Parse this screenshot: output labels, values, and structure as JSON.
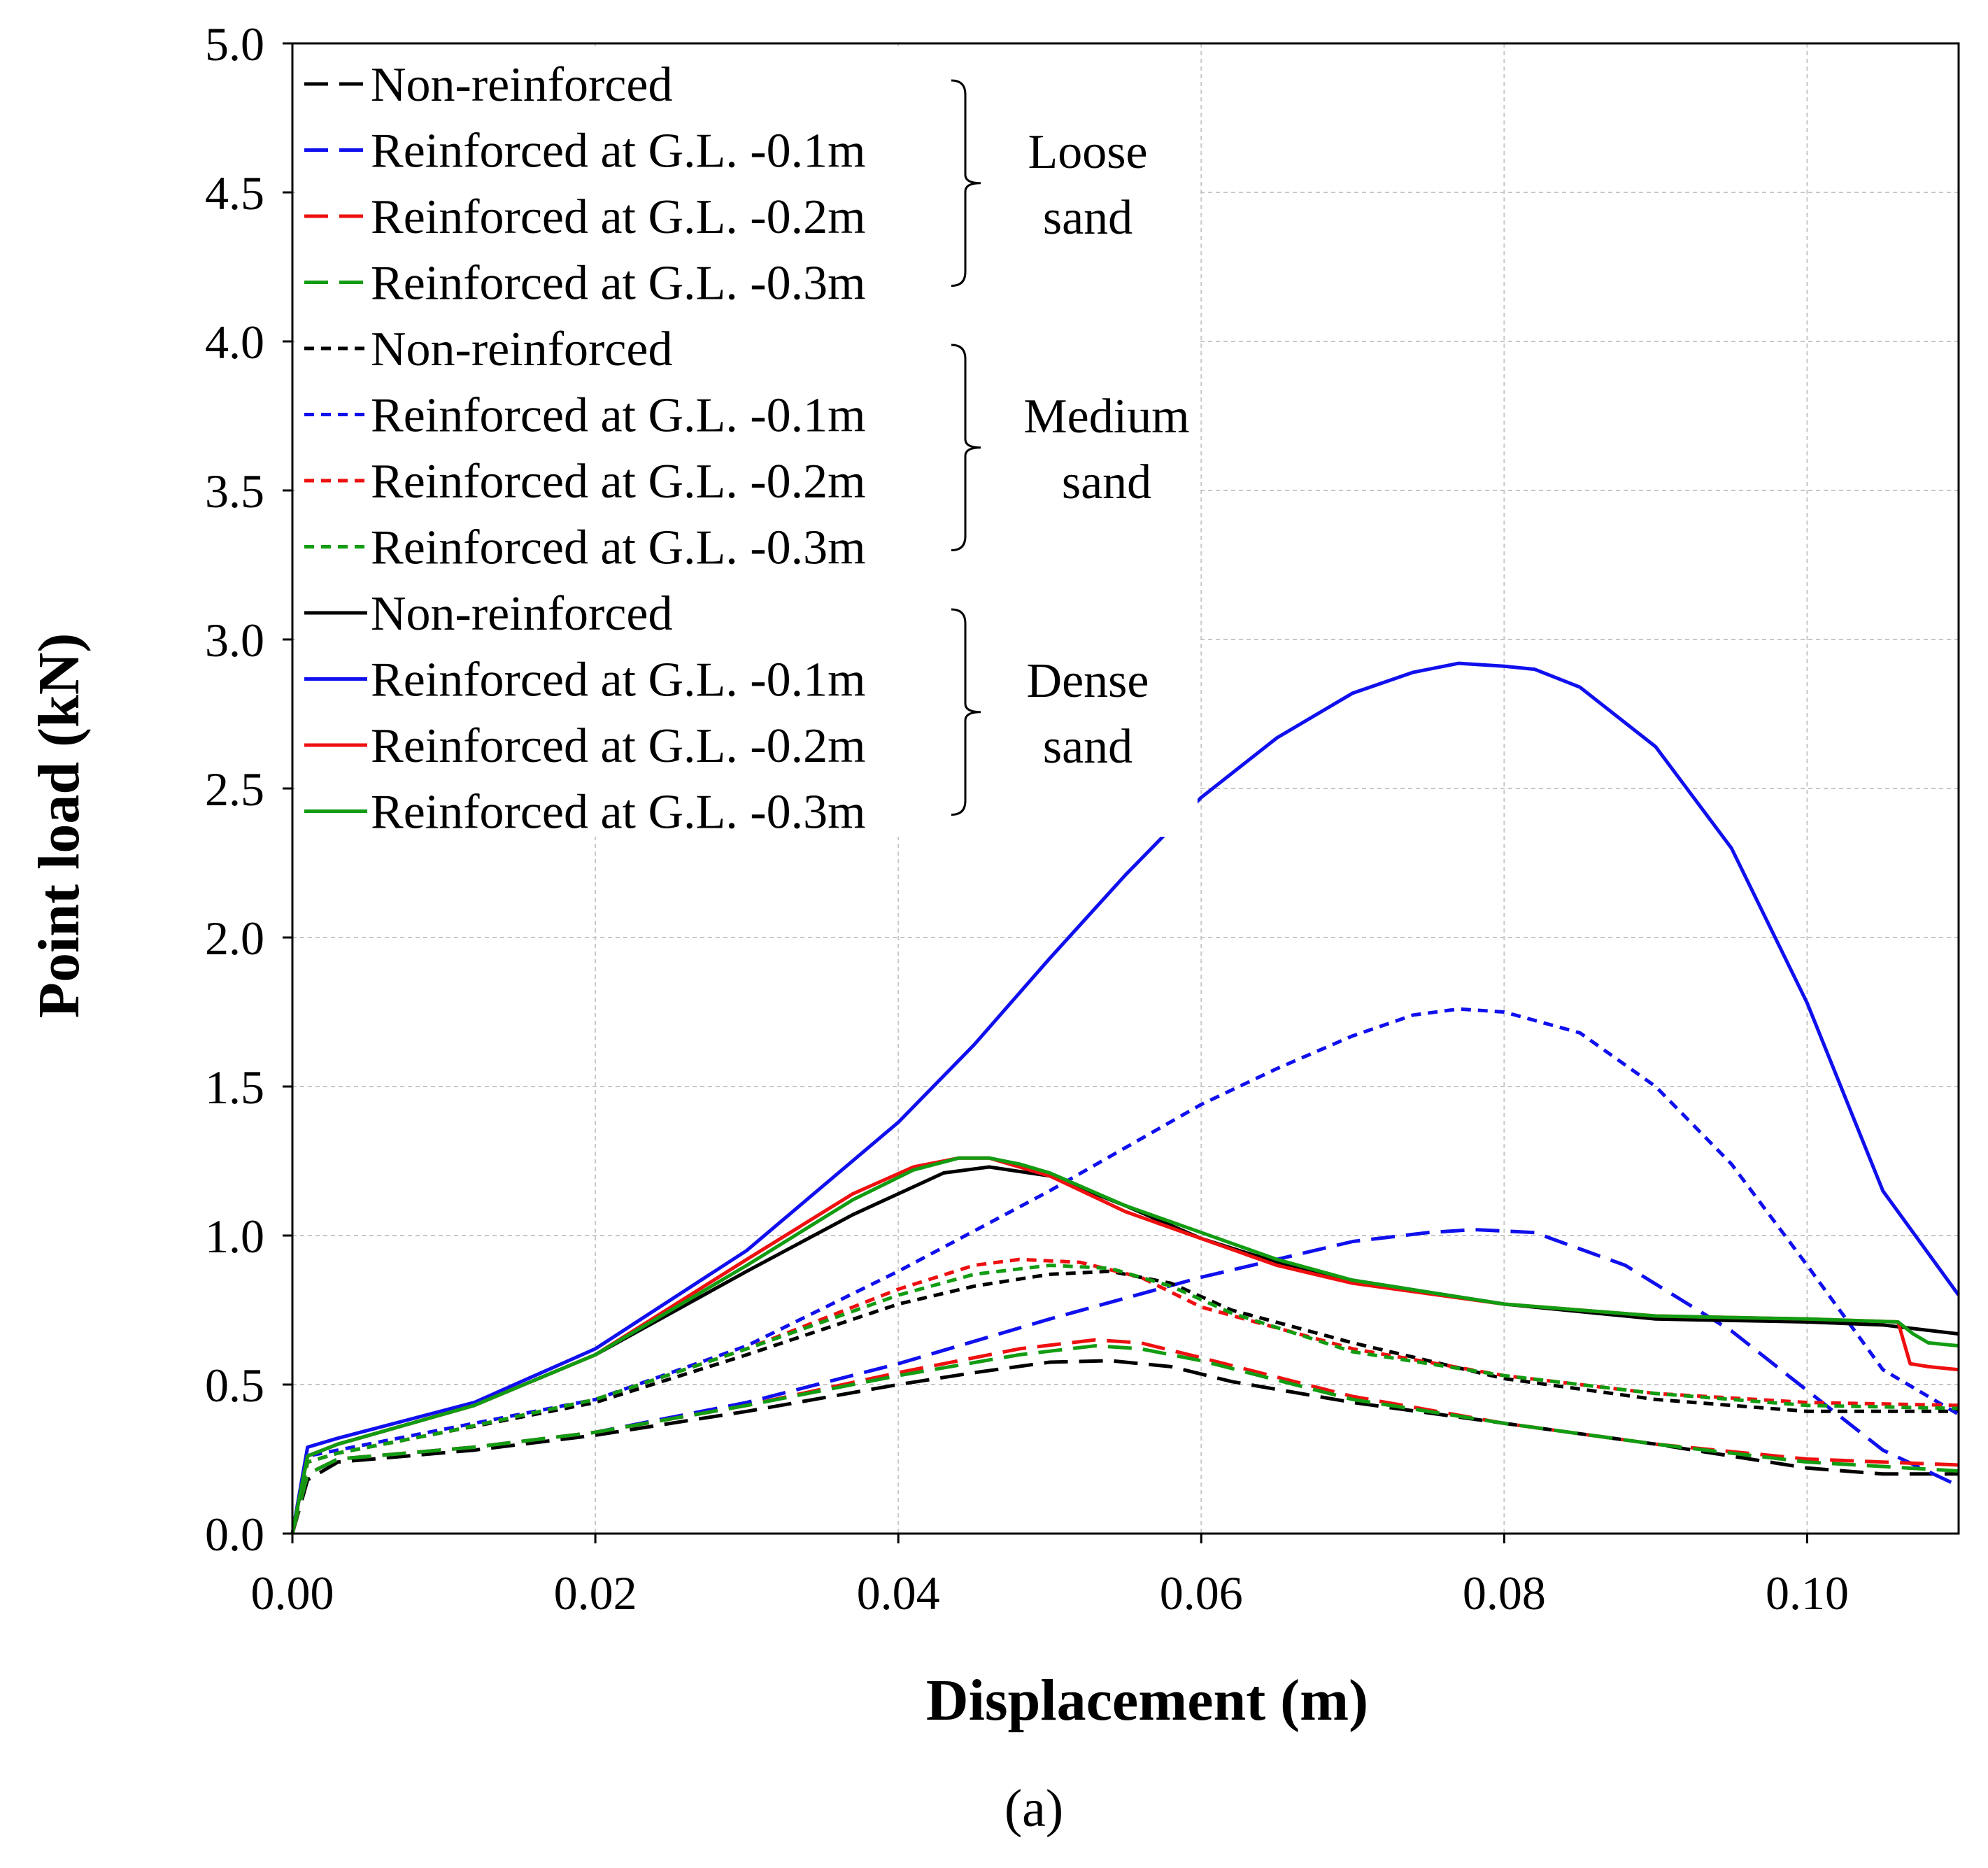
{
  "chart_data": {
    "type": "line",
    "xlabel": "Displacement (m)",
    "ylabel": "Point load (kN)",
    "caption": "(a)",
    "xlim": [
      0,
      0.11
    ],
    "ylim": [
      0,
      5.0
    ],
    "xticks": [
      0.0,
      0.02,
      0.04,
      0.06,
      0.08,
      0.1
    ],
    "xtick_labels": [
      "0.00",
      "0.02",
      "0.04",
      "0.06",
      "0.08",
      "0.10"
    ],
    "yticks": [
      0.0,
      0.5,
      1.0,
      1.5,
      2.0,
      2.5,
      3.0,
      3.5,
      4.0,
      4.5,
      5.0
    ],
    "ytick_labels": [
      "0.0",
      "0.5",
      "1.0",
      "1.5",
      "2.0",
      "2.5",
      "3.0",
      "3.5",
      "4.0",
      "4.5",
      "5.0"
    ],
    "grid": true,
    "legend_position": "top-left",
    "groups": [
      {
        "label_line1": "Loose",
        "label_line2": "sand",
        "style": "long-dash"
      },
      {
        "label_line1": "Medium",
        "label_line2": "sand",
        "style": "short-dash"
      },
      {
        "label_line1": "Dense",
        "label_line2": "sand",
        "style": "solid"
      }
    ],
    "series": [
      {
        "name": "Non-reinforced",
        "group": 0,
        "color": "#000000",
        "x": [
          0,
          0.001,
          0.003,
          0.012,
          0.02,
          0.03,
          0.04,
          0.045,
          0.05,
          0.054,
          0.058,
          0.062,
          0.07,
          0.08,
          0.09,
          0.1,
          0.105,
          0.11
        ],
        "y": [
          0,
          0.18,
          0.24,
          0.28,
          0.33,
          0.41,
          0.5,
          0.54,
          0.575,
          0.58,
          0.56,
          0.51,
          0.44,
          0.37,
          0.3,
          0.22,
          0.2,
          0.2
        ]
      },
      {
        "name": "Reinforced at G.L. -0.1m",
        "group": 0,
        "color": "#1010ee",
        "x": [
          0,
          0.001,
          0.003,
          0.012,
          0.02,
          0.03,
          0.04,
          0.05,
          0.06,
          0.07,
          0.075,
          0.078,
          0.082,
          0.088,
          0.095,
          0.1,
          0.105,
          0.11
        ],
        "y": [
          0,
          0.2,
          0.25,
          0.29,
          0.34,
          0.44,
          0.57,
          0.72,
          0.86,
          0.98,
          1.01,
          1.02,
          1.01,
          0.9,
          0.68,
          0.48,
          0.28,
          0.16
        ]
      },
      {
        "name": "Reinforced at G.L. -0.2m",
        "group": 0,
        "color": "#ee1010",
        "x": [
          0,
          0.001,
          0.003,
          0.012,
          0.02,
          0.03,
          0.04,
          0.048,
          0.053,
          0.056,
          0.06,
          0.07,
          0.08,
          0.09,
          0.1,
          0.11
        ],
        "y": [
          0,
          0.2,
          0.25,
          0.29,
          0.34,
          0.43,
          0.54,
          0.62,
          0.65,
          0.64,
          0.59,
          0.46,
          0.37,
          0.3,
          0.25,
          0.23
        ]
      },
      {
        "name": "Reinforced at G.L. -0.3m",
        "group": 0,
        "color": "#129c12",
        "x": [
          0,
          0.001,
          0.003,
          0.012,
          0.02,
          0.03,
          0.04,
          0.048,
          0.053,
          0.056,
          0.06,
          0.07,
          0.08,
          0.09,
          0.1,
          0.11
        ],
        "y": [
          0,
          0.2,
          0.25,
          0.29,
          0.34,
          0.43,
          0.53,
          0.6,
          0.63,
          0.62,
          0.58,
          0.45,
          0.37,
          0.3,
          0.24,
          0.21
        ]
      },
      {
        "name": "Non-reinforced",
        "group": 1,
        "color": "#000000",
        "x": [
          0,
          0.001,
          0.003,
          0.01,
          0.02,
          0.03,
          0.04,
          0.045,
          0.05,
          0.054,
          0.058,
          0.062,
          0.07,
          0.08,
          0.09,
          0.1,
          0.11
        ],
        "y": [
          0,
          0.24,
          0.27,
          0.34,
          0.44,
          0.6,
          0.77,
          0.83,
          0.87,
          0.88,
          0.84,
          0.75,
          0.64,
          0.52,
          0.45,
          0.41,
          0.41
        ]
      },
      {
        "name": "Reinforced at G.L. -0.1m",
        "group": 1,
        "color": "#1010ee",
        "x": [
          0,
          0.001,
          0.003,
          0.01,
          0.02,
          0.03,
          0.04,
          0.05,
          0.06,
          0.065,
          0.07,
          0.074,
          0.077,
          0.08,
          0.085,
          0.09,
          0.095,
          0.1,
          0.105,
          0.11
        ],
        "y": [
          0,
          0.26,
          0.28,
          0.35,
          0.45,
          0.63,
          0.88,
          1.15,
          1.44,
          1.56,
          1.67,
          1.74,
          1.76,
          1.75,
          1.68,
          1.5,
          1.24,
          0.9,
          0.55,
          0.4
        ]
      },
      {
        "name": "Reinforced at G.L. -0.2m",
        "group": 1,
        "color": "#ee1010",
        "x": [
          0,
          0.001,
          0.003,
          0.01,
          0.02,
          0.03,
          0.04,
          0.045,
          0.048,
          0.052,
          0.056,
          0.06,
          0.07,
          0.08,
          0.09,
          0.1,
          0.11
        ],
        "y": [
          0,
          0.24,
          0.27,
          0.34,
          0.45,
          0.62,
          0.82,
          0.9,
          0.92,
          0.91,
          0.86,
          0.76,
          0.62,
          0.53,
          0.47,
          0.44,
          0.43
        ]
      },
      {
        "name": "Reinforced at G.L. -0.3m",
        "group": 1,
        "color": "#129c12",
        "x": [
          0,
          0.001,
          0.003,
          0.01,
          0.02,
          0.03,
          0.04,
          0.045,
          0.05,
          0.054,
          0.058,
          0.062,
          0.07,
          0.08,
          0.09,
          0.1,
          0.11
        ],
        "y": [
          0,
          0.24,
          0.27,
          0.34,
          0.45,
          0.62,
          0.8,
          0.87,
          0.9,
          0.89,
          0.83,
          0.74,
          0.61,
          0.53,
          0.47,
          0.43,
          0.42
        ]
      },
      {
        "name": "Non-reinforced",
        "group": 2,
        "color": "#000000",
        "x": [
          0,
          0.001,
          0.003,
          0.012,
          0.02,
          0.03,
          0.037,
          0.043,
          0.046,
          0.05,
          0.055,
          0.06,
          0.065,
          0.07,
          0.08,
          0.09,
          0.1,
          0.105,
          0.11
        ],
        "y": [
          0,
          0.26,
          0.3,
          0.43,
          0.6,
          0.88,
          1.07,
          1.21,
          1.23,
          1.2,
          1.1,
          0.99,
          0.91,
          0.85,
          0.77,
          0.72,
          0.71,
          0.7,
          0.67
        ]
      },
      {
        "name": "Reinforced at G.L. -0.1m",
        "group": 2,
        "color": "#1010ee",
        "x": [
          0,
          0.001,
          0.003,
          0.012,
          0.02,
          0.03,
          0.04,
          0.045,
          0.05,
          0.055,
          0.06,
          0.065,
          0.07,
          0.074,
          0.077,
          0.08,
          0.082,
          0.085,
          0.09,
          0.095,
          0.1,
          0.105,
          0.11
        ],
        "y": [
          0,
          0.29,
          0.32,
          0.44,
          0.62,
          0.95,
          1.38,
          1.64,
          1.93,
          2.21,
          2.47,
          2.67,
          2.82,
          2.89,
          2.92,
          2.91,
          2.9,
          2.84,
          2.64,
          2.3,
          1.78,
          1.15,
          0.8
        ]
      },
      {
        "name": "Reinforced at G.L. -0.2m",
        "group": 2,
        "color": "#ee1010",
        "x": [
          0,
          0.001,
          0.003,
          0.012,
          0.02,
          0.03,
          0.037,
          0.041,
          0.044,
          0.046,
          0.048,
          0.05,
          0.055,
          0.06,
          0.065,
          0.07,
          0.08,
          0.09,
          0.1,
          0.106,
          0.1068,
          0.108,
          0.11
        ],
        "y": [
          0,
          0.26,
          0.3,
          0.43,
          0.6,
          0.92,
          1.14,
          1.23,
          1.26,
          1.26,
          1.23,
          1.2,
          1.08,
          0.99,
          0.9,
          0.84,
          0.77,
          0.73,
          0.72,
          0.71,
          0.57,
          0.56,
          0.55
        ]
      },
      {
        "name": "Reinforced at G.L. -0.3m",
        "group": 2,
        "color": "#129c12",
        "x": [
          0,
          0.001,
          0.003,
          0.012,
          0.02,
          0.03,
          0.037,
          0.041,
          0.044,
          0.046,
          0.048,
          0.05,
          0.055,
          0.06,
          0.065,
          0.07,
          0.08,
          0.09,
          0.1,
          0.106,
          0.107,
          0.108,
          0.11
        ],
        "y": [
          0,
          0.26,
          0.3,
          0.43,
          0.6,
          0.9,
          1.12,
          1.22,
          1.26,
          1.26,
          1.24,
          1.21,
          1.1,
          1.01,
          0.92,
          0.85,
          0.77,
          0.73,
          0.72,
          0.71,
          0.67,
          0.64,
          0.63
        ]
      }
    ]
  }
}
